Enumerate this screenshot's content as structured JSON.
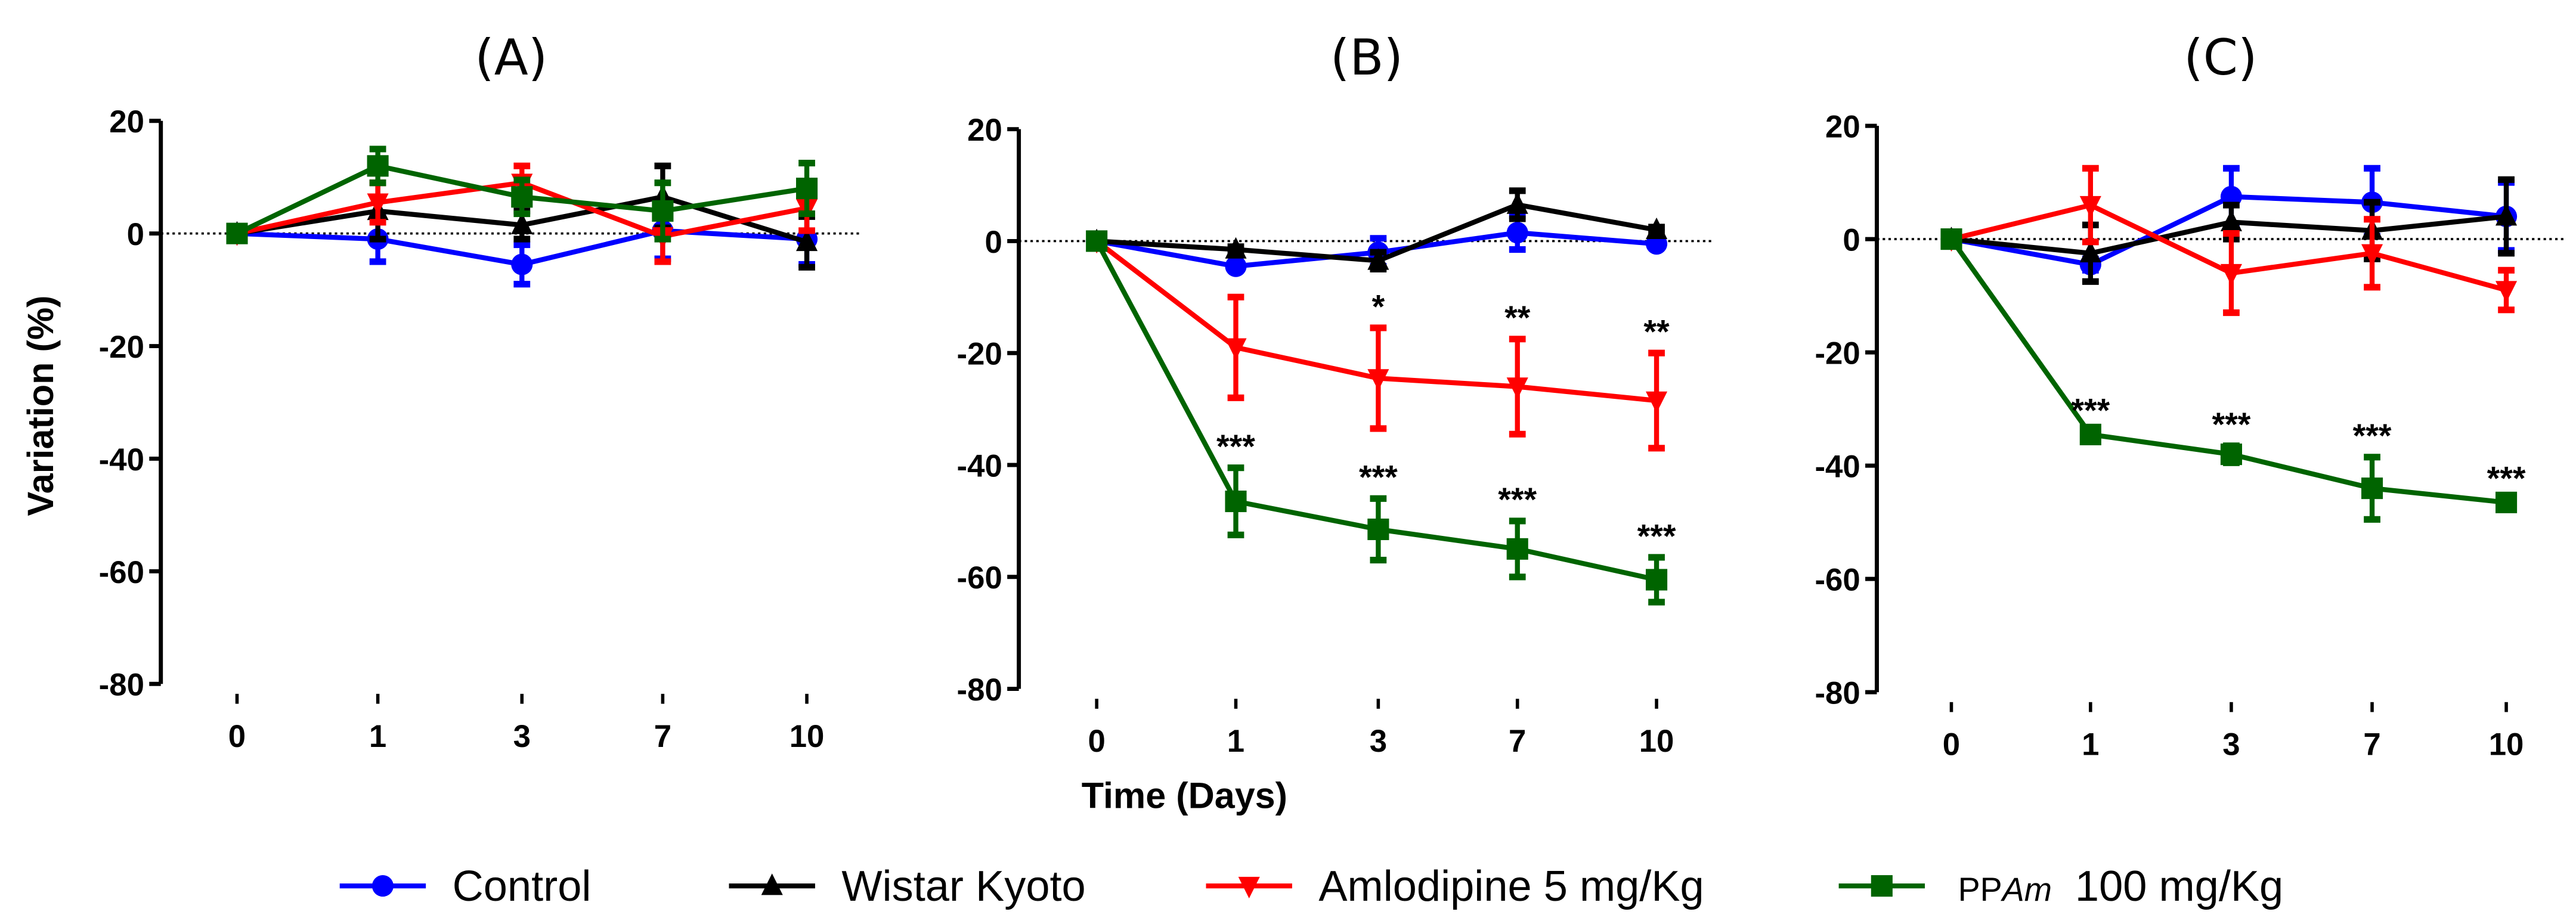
{
  "chart_data": {
    "type": "line",
    "ylabel": "Variation (%)",
    "xlabel": "Time (Days)",
    "x_categories": [
      "0",
      "1",
      "3",
      "7",
      "10"
    ],
    "ylim": [
      -80,
      20
    ],
    "yticks": [
      20,
      0,
      -20,
      -40,
      -60,
      -80
    ],
    "reference_line": 0,
    "legend_placement": "bottom",
    "legend": [
      {
        "name": "Control",
        "color": "#0000ff",
        "marker": "circle"
      },
      {
        "name": "Wistar Kyoto",
        "color": "#000000",
        "marker": "triangle-up"
      },
      {
        "name": "Amlodipine 5 mg/Kg",
        "color": "#ff0000",
        "marker": "triangle-down"
      },
      {
        "name_prefix": "PP",
        "name_italic": "Am",
        "name_suffix": "100 mg/Kg",
        "name": "PPAm 100 mg/Kg",
        "color": "#006400",
        "marker": "square"
      }
    ],
    "panels": [
      {
        "title": "(A)",
        "series": [
          {
            "name": "Control",
            "values": [
              0,
              -1,
              -5.5,
              0.5,
              -1
            ],
            "errors": [
              0,
              4,
              3.5,
              5,
              4.5
            ]
          },
          {
            "name": "Wistar Kyoto",
            "values": [
              0,
              4,
              1.5,
              6.5,
              -1.5
            ],
            "errors": [
              0,
              5,
              2.5,
              5.5,
              4.5
            ]
          },
          {
            "name": "Amlodipine 5 mg/Kg",
            "values": [
              0,
              5.5,
              9,
              -0.5,
              4.5
            ],
            "errors": [
              0,
              3.5,
              3,
              4.5,
              4
            ]
          },
          {
            "name": "PPAm 100 mg/Kg",
            "values": [
              0,
              12,
              6.5,
              4,
              8
            ],
            "errors": [
              0,
              3,
              3,
              5,
              4.5
            ]
          }
        ],
        "significance": []
      },
      {
        "title": "(B)",
        "series": [
          {
            "name": "Control",
            "values": [
              0,
              -4.5,
              -2,
              1.5,
              -0.5
            ],
            "errors": [
              0,
              0.5,
              2.5,
              3,
              0.5
            ]
          },
          {
            "name": "Wistar Kyoto",
            "values": [
              0,
              -1.5,
              -3.5,
              6.5,
              2
            ],
            "errors": [
              0,
              0.5,
              1.5,
              2.5,
              0.5
            ]
          },
          {
            "name": "Amlodipine 5 mg/Kg",
            "values": [
              0,
              -19,
              -24.5,
              -26,
              -28.5
            ],
            "errors": [
              0,
              9,
              9,
              8.5,
              8.5
            ]
          },
          {
            "name": "PPAm 100 mg/Kg",
            "values": [
              0,
              -46.5,
              -51.5,
              -55,
              -60.5
            ],
            "errors": [
              0,
              6,
              5.5,
              5,
              4
            ]
          }
        ],
        "significance": [
          {
            "series": "Amlodipine 5 mg/Kg",
            "labels": [
              "",
              "",
              "*",
              "**",
              "**"
            ]
          },
          {
            "series": "PPAm 100 mg/Kg",
            "labels": [
              "",
              "***",
              "***",
              "***",
              "***"
            ]
          }
        ]
      },
      {
        "title": "(C)",
        "series": [
          {
            "name": "Control",
            "values": [
              0,
              -4.5,
              7.5,
              6.5,
              4
            ],
            "errors": [
              0,
              1,
              5,
              6,
              6
            ]
          },
          {
            "name": "Wistar Kyoto",
            "values": [
              0,
              -2.5,
              3,
              1.5,
              4
            ],
            "errors": [
              0,
              5,
              3,
              5,
              6.5
            ]
          },
          {
            "name": "Amlodipine 5 mg/Kg",
            "values": [
              0,
              6,
              -6,
              -2.5,
              -9
            ],
            "errors": [
              0,
              6.5,
              7,
              6,
              3.5
            ]
          },
          {
            "name": "PPAm 100 mg/Kg",
            "values": [
              0,
              -34.5,
              -38,
              -44,
              -46.5
            ],
            "errors": [
              0,
              0.5,
              1.5,
              5.5,
              0.5
            ]
          }
        ],
        "significance": [
          {
            "series": "PPAm 100 mg/Kg",
            "labels": [
              "",
              "***",
              "***",
              "***",
              "***"
            ]
          }
        ]
      }
    ]
  }
}
